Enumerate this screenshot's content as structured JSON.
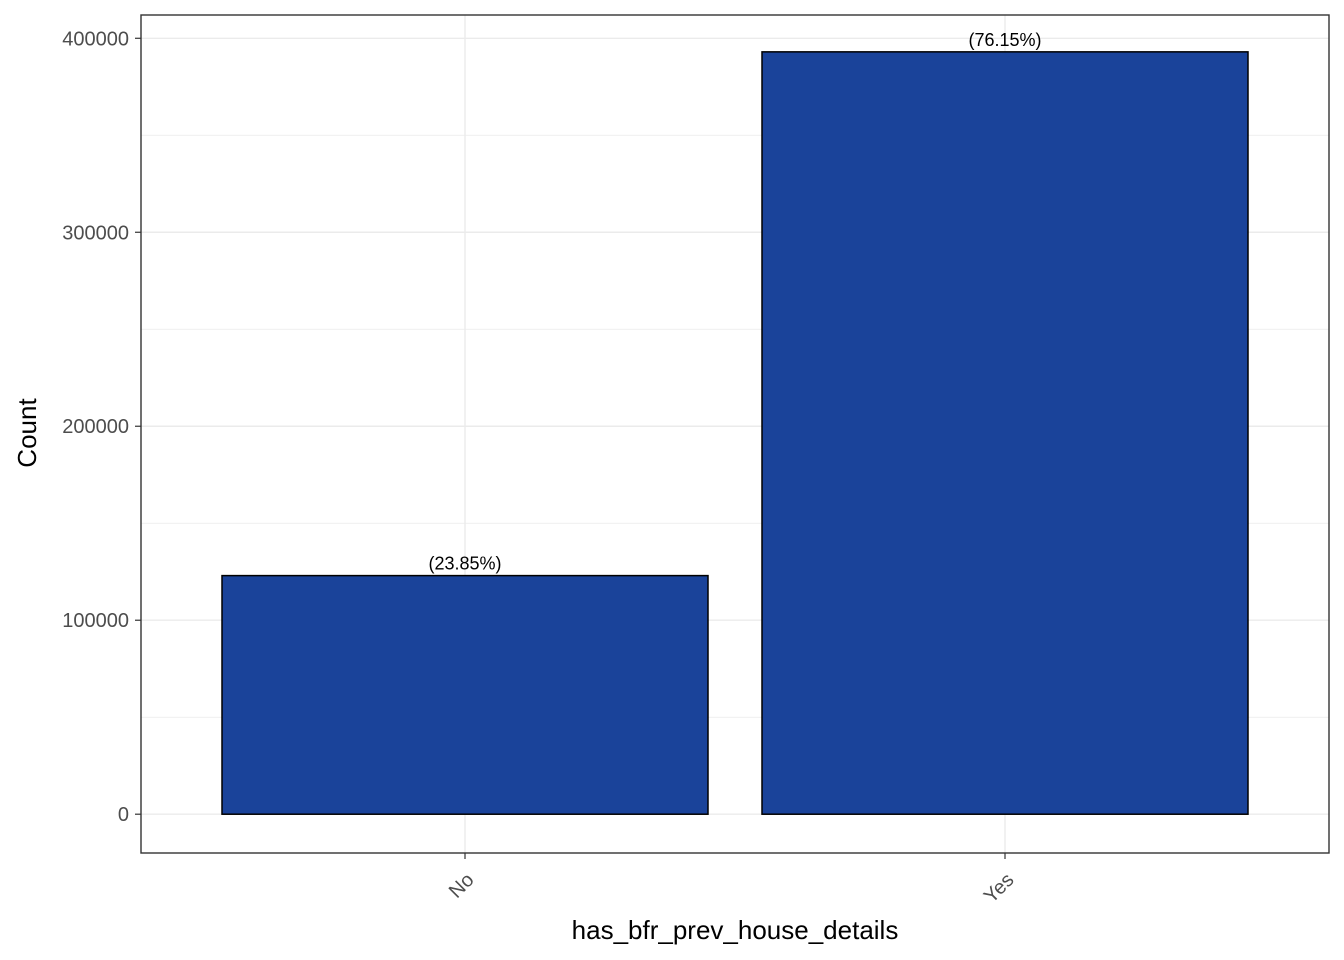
{
  "chart_data": {
    "type": "bar",
    "title": "",
    "xlabel": "has_bfr_prev_house_details",
    "ylabel": "Count",
    "categories": [
      "No",
      "Yes"
    ],
    "values": [
      123000,
      393000
    ],
    "data_labels": [
      "(23.85%)",
      "(76.15%)"
    ],
    "yticks": [
      0,
      100000,
      200000,
      300000,
      400000
    ],
    "ylim": [
      -20000,
      412000
    ],
    "grid": true,
    "legend": "none",
    "bar_color": "#1a439a",
    "bar_outline": "#000000"
  }
}
